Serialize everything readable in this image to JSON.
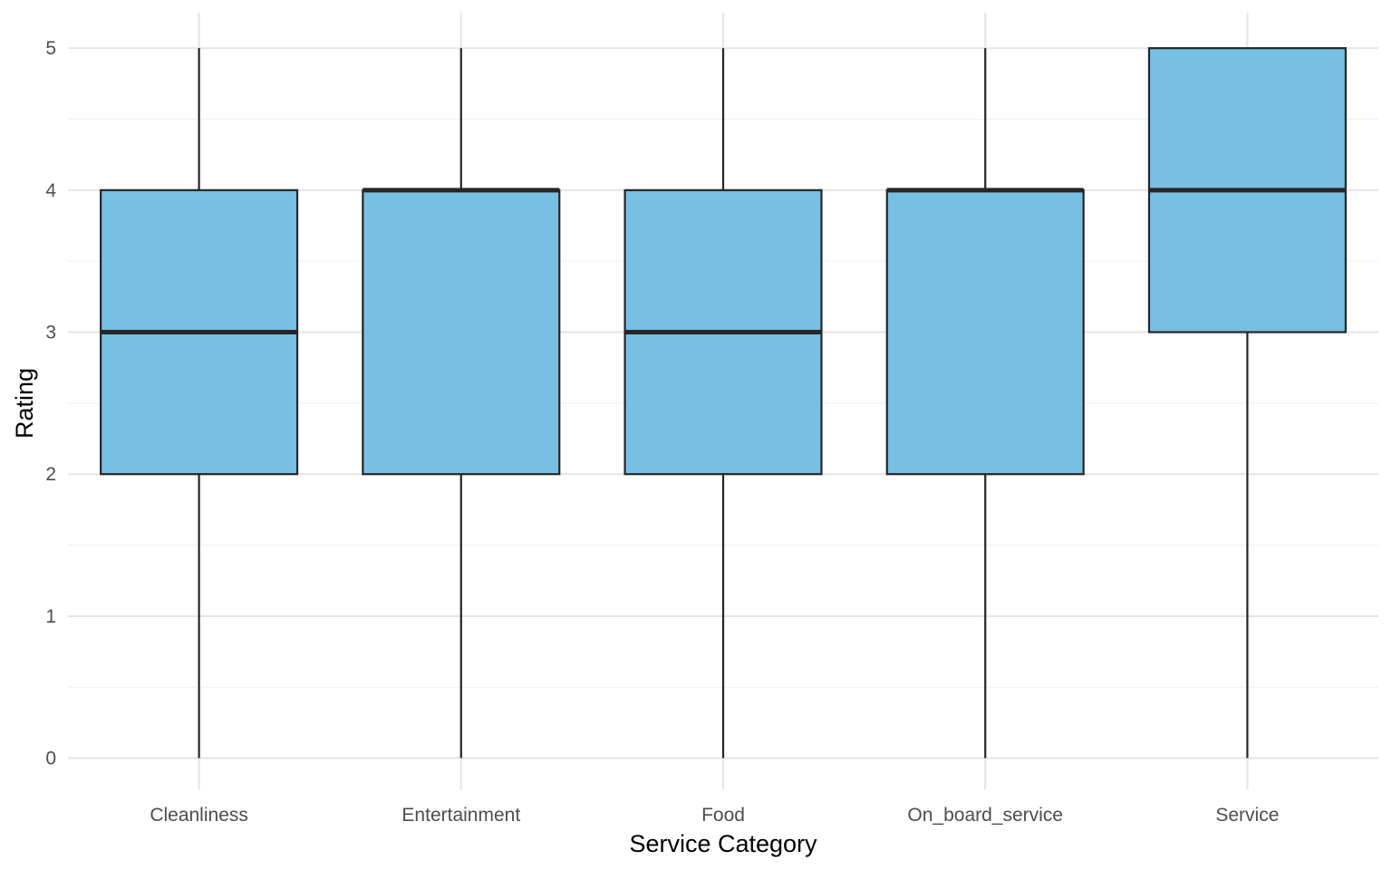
{
  "chart_data": {
    "type": "box",
    "title": "",
    "xlabel": "Service Category",
    "ylabel": "Rating",
    "ylim": [
      -0.22,
      5.25
    ],
    "yticks": [
      0,
      1,
      2,
      3,
      4,
      5
    ],
    "yminor": [
      0.5,
      1.5,
      2.5,
      3.5,
      4.5
    ],
    "grid": true,
    "legend": "none",
    "categories": [
      "Cleanliness",
      "Entertainment",
      "Food",
      "On_board_service",
      "Service"
    ],
    "boxes": [
      {
        "category": "Cleanliness",
        "min": 0,
        "q1": 2,
        "median": 3,
        "q3": 4,
        "max": 5
      },
      {
        "category": "Entertainment",
        "min": 0,
        "q1": 2,
        "median": 4,
        "q3": 4,
        "max": 5
      },
      {
        "category": "Food",
        "min": 0,
        "q1": 2,
        "median": 3,
        "q3": 4,
        "max": 5
      },
      {
        "category": "On_board_service",
        "min": 0,
        "q1": 2,
        "median": 4,
        "q3": 4,
        "max": 5
      },
      {
        "category": "Service",
        "min": 0,
        "q1": 3,
        "median": 4,
        "q3": 5,
        "max": 5
      }
    ],
    "colors": {
      "box_fill": "#77c0e3",
      "box_stroke": "#262626",
      "grid_major": "#e6e6e6",
      "grid_minor": "#f0f0f0"
    }
  }
}
